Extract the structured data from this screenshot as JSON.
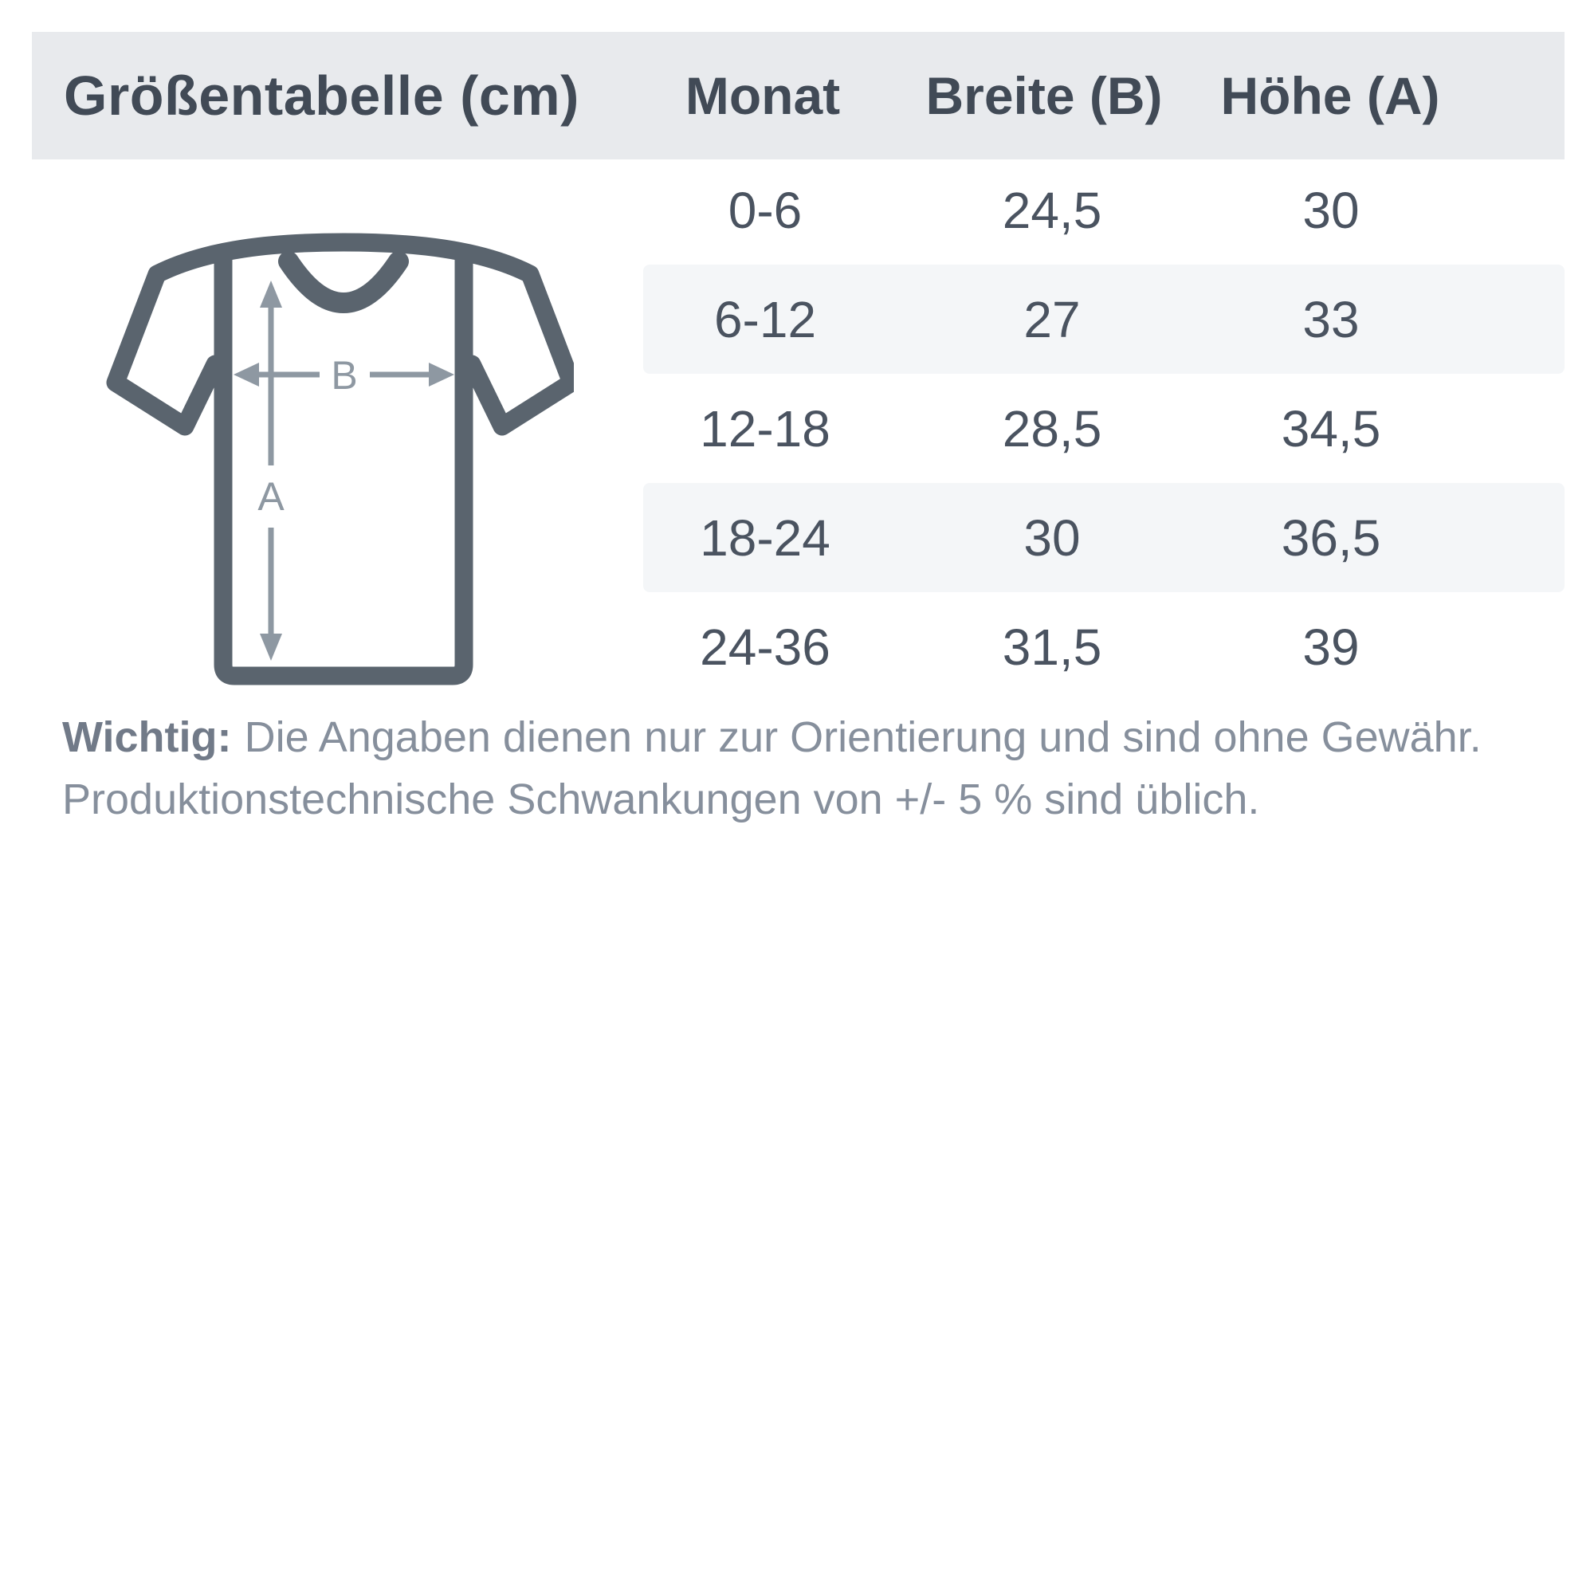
{
  "header": {
    "title": "Größentabelle (cm)",
    "columns": [
      "Monat",
      "Breite (B)",
      "Höhe (A)"
    ]
  },
  "table": {
    "rows": [
      {
        "monat": "0-6",
        "breite": "24,5",
        "hoehe": "30"
      },
      {
        "monat": "6-12",
        "breite": "27",
        "hoehe": "33"
      },
      {
        "monat": "12-18",
        "breite": "28,5",
        "hoehe": "34,5"
      },
      {
        "monat": "18-24",
        "breite": "30",
        "hoehe": "36,5"
      },
      {
        "monat": "24-36",
        "breite": "31,5",
        "hoehe": "39"
      }
    ]
  },
  "diagram": {
    "height_label": "A",
    "width_label": "B"
  },
  "footer": {
    "emphasis": "Wichtig:",
    "line1": "Die Angaben dienen nur zur Orientierung und sind ohne Gewähr.",
    "line2": "Produktionstechnische Schwankungen von +/- 5 % sind üblich."
  },
  "colors": {
    "header_bg": "#e8eaed",
    "band_bg": "#f4f6f8",
    "heading_text": "#414a56",
    "cell_text": "#4a5360",
    "shirt_outline": "#5a646e",
    "arrow": "#8e98a2",
    "footer_text": "#868f9c",
    "footer_bold_text": "#717a88"
  },
  "chart_data": {
    "type": "table",
    "title": "Größentabelle (cm)",
    "units": "cm",
    "columns": [
      "Monat",
      "Breite (B)",
      "Höhe (A)"
    ],
    "rows": [
      [
        "0-6",
        "24,5",
        "30"
      ],
      [
        "6-12",
        "27",
        "33"
      ],
      [
        "12-18",
        "28,5",
        "34,5"
      ],
      [
        "18-24",
        "30",
        "36,5"
      ],
      [
        "24-36",
        "31,5",
        "39"
      ]
    ],
    "banded_row_indexes": [
      1,
      3
    ],
    "note": "Wichtig: Die Angaben dienen nur zur Orientierung und sind ohne Gewähr. Produktionstechnische Schwankungen von +/- 5 % sind üblich."
  }
}
